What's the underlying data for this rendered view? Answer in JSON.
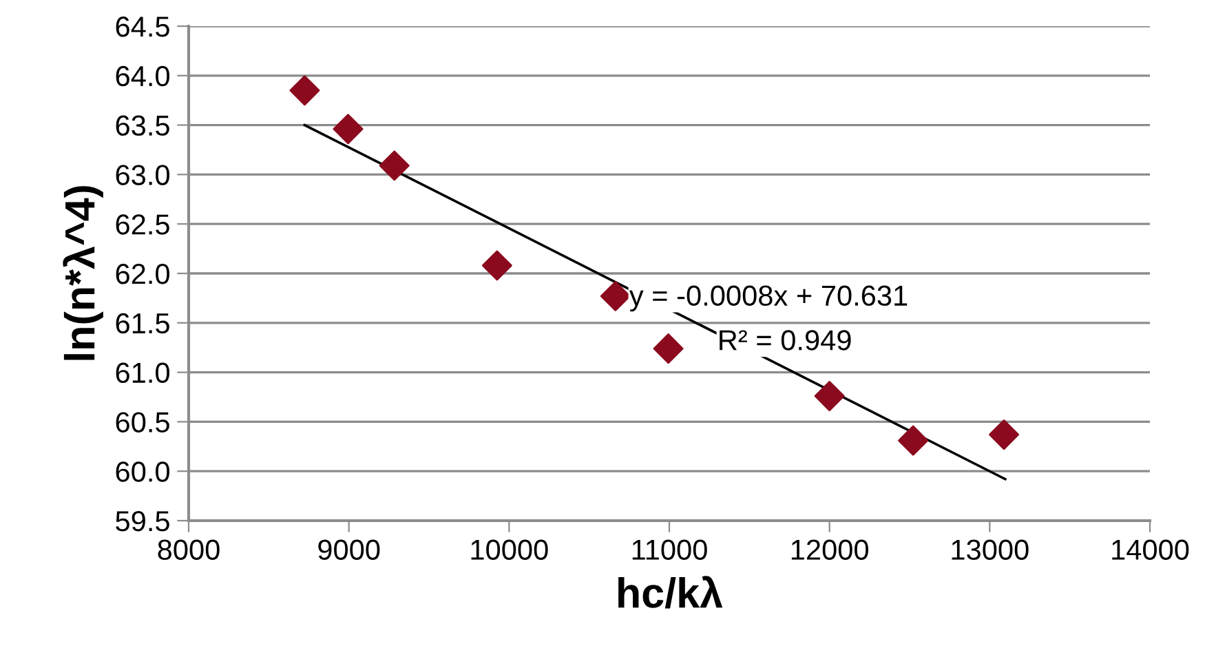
{
  "chart_data": {
    "type": "scatter",
    "xlabel": "hc/kλ",
    "ylabel": "ln(n*λ^4)",
    "xlim": [
      8000,
      14000
    ],
    "xticks": [
      8000,
      9000,
      10000,
      11000,
      12000,
      13000,
      14000
    ],
    "ylim": [
      59.5,
      64.5
    ],
    "yticks": [
      59.5,
      {
        "value": 60,
        "label": "60.0"
      },
      60.5,
      {
        "value": 61,
        "label": "61.0"
      },
      61.5,
      {
        "value": 62,
        "label": "62.0"
      },
      62.5,
      {
        "value": 63,
        "label": "63.0"
      },
      63.5,
      {
        "value": 64,
        "label": "64.0"
      },
      64.5
    ],
    "grid": "y",
    "series": [
      {
        "color": "#8b0a1e",
        "marker": "diamond",
        "x": [
          8724,
          8995,
          9284,
          9925,
          10664,
          10994,
          12000,
          12522,
          13089
        ],
        "values": [
          63.85,
          63.46,
          63.09,
          62.08,
          61.77,
          61.24,
          60.76,
          60.31,
          60.37
        ]
      },
      {
        "type": "line",
        "color": "#000000",
        "marker": "none",
        "line_style": "solid",
        "x": [
          8724,
          13097
        ],
        "values": [
          63.5,
          59.92
        ]
      }
    ],
    "annotations": [
      {
        "text": "y = -0.0008x + 70.631",
        "x": 10750,
        "y": 61.75
      },
      {
        "text": "R² = 0.949",
        "x": 11300,
        "y": 61.3
      }
    ]
  }
}
